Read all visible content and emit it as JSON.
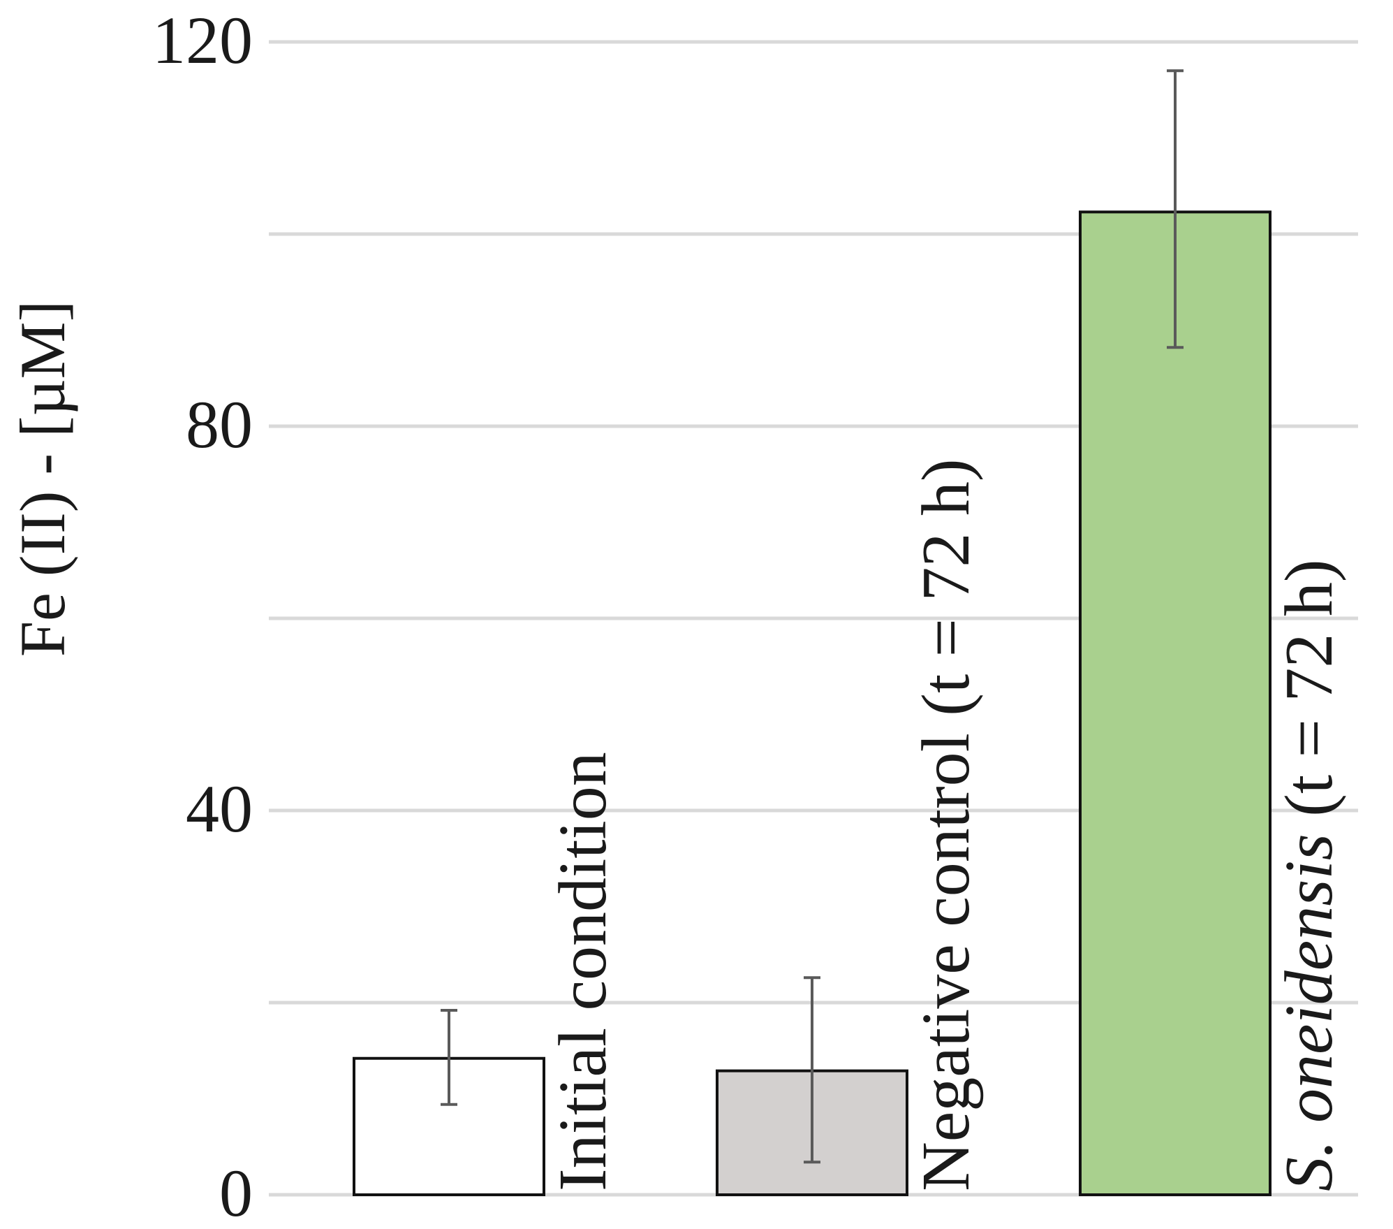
{
  "chart_data": {
    "type": "bar",
    "title": "",
    "xlabel": "",
    "ylabel": "Fe (II) - [µM]",
    "ylim": [
      0,
      120
    ],
    "yticks": [
      0,
      40,
      80,
      120
    ],
    "grid_values": [
      0,
      20,
      40,
      60,
      80,
      100,
      120
    ],
    "grid": true,
    "legend": "none",
    "categories": [
      {
        "text": "Initial condition",
        "italic": "",
        "rest": "Initial condition"
      },
      {
        "text": "Negative control (t = 72 h)",
        "italic": "",
        "rest": "Negative control (t = 72 h)"
      },
      {
        "text": "S. oneidensis (t = 72 h)",
        "italic": "S. oneidensis",
        "rest": " (t = 72 h)"
      }
    ],
    "values": [
      14.2,
      12.9,
      102.3
    ],
    "error_low": [
      9.4,
      3.4,
      88.2
    ],
    "error_high": [
      19.2,
      22.6,
      117.0
    ],
    "bar_colors": [
      "#ffffff",
      "#d3d0cf",
      "#a9d08e"
    ],
    "bar_edge_color": "#111111",
    "error_color": "#5a5a5a",
    "grid_color": "#d9d9d9"
  }
}
